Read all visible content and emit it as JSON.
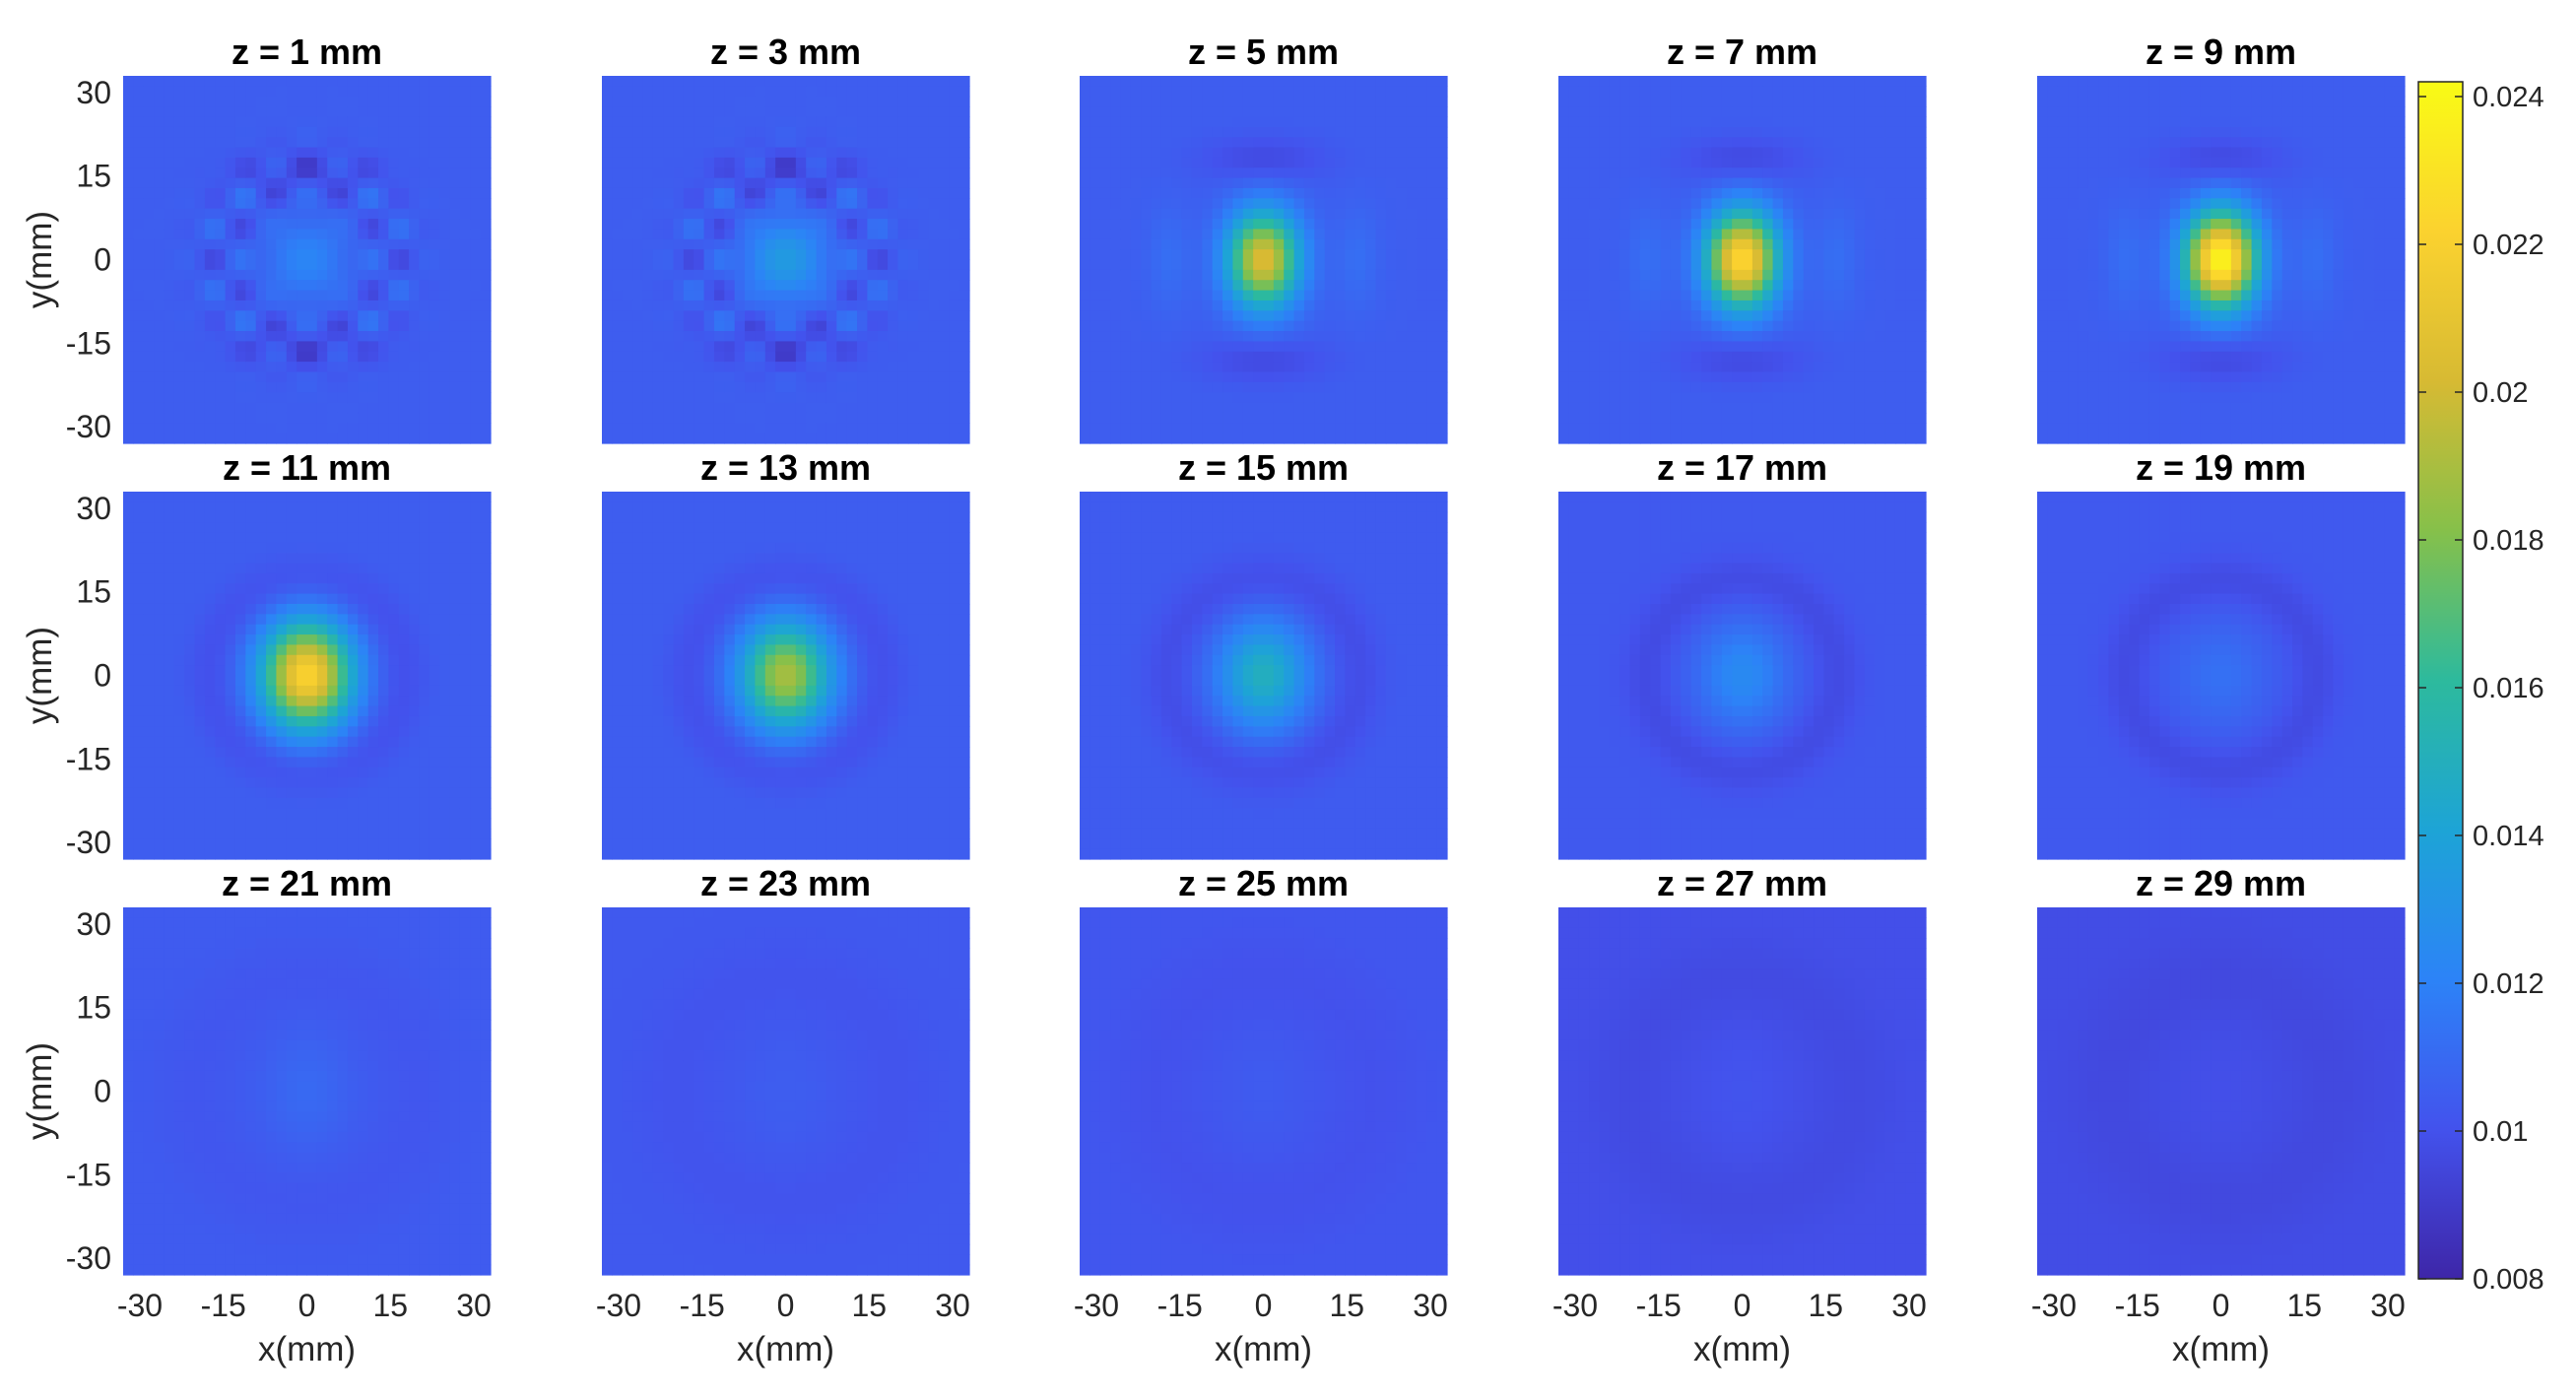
{
  "chart_data": {
    "type": "heatmap",
    "colormap": "parula",
    "colormap_stops": [
      "#3e26a8",
      "#4352ed",
      "#2c83f7",
      "#1da4d6",
      "#2dba9d",
      "#86c04a",
      "#d7ba33",
      "#fbd22f",
      "#f9fb15"
    ],
    "xlabel": "x(mm)",
    "ylabel": "y(mm)",
    "xlim": [
      -33,
      33
    ],
    "ylim": [
      -33,
      33
    ],
    "xticks": [
      -30,
      -15,
      0,
      15,
      30
    ],
    "yticks": [
      30,
      15,
      0,
      -15,
      -30
    ],
    "x_tick_labels": [
      "-30",
      "-15",
      "0",
      "15",
      "30"
    ],
    "y_tick_labels": [
      "30",
      "15",
      "0",
      "-15",
      "-30"
    ],
    "colorbar": {
      "range": [
        0.008,
        0.0242
      ],
      "ticks": [
        0.024,
        0.022,
        0.02,
        0.018,
        0.016,
        0.014,
        0.012,
        0.01,
        0.008
      ],
      "tick_labels": [
        "0.024",
        "0.022",
        "0.02",
        "0.018",
        "0.016",
        "0.014",
        "0.012",
        "0.01",
        "0.008"
      ]
    },
    "panels": [
      {
        "title": "z = 1 mm",
        "z_mm": 1,
        "background": 0.0105,
        "peak": 0.0122,
        "pattern": "checker"
      },
      {
        "title": "z = 3 mm",
        "z_mm": 3,
        "background": 0.0105,
        "peak": 0.0135,
        "pattern": "checker"
      },
      {
        "title": "z = 5 mm",
        "z_mm": 5,
        "background": 0.0105,
        "peak": 0.0205,
        "pattern": "lobes"
      },
      {
        "title": "z = 7 mm",
        "z_mm": 7,
        "background": 0.0105,
        "peak": 0.0225,
        "pattern": "lobes"
      },
      {
        "title": "z = 9 mm",
        "z_mm": 9,
        "background": 0.0105,
        "peak": 0.024,
        "pattern": "lobes"
      },
      {
        "title": "z = 11 mm",
        "z_mm": 11,
        "background": 0.0105,
        "peak": 0.0222,
        "pattern": "ring"
      },
      {
        "title": "z = 13 mm",
        "z_mm": 13,
        "background": 0.0105,
        "peak": 0.019,
        "pattern": "ring"
      },
      {
        "title": "z = 15 mm",
        "z_mm": 15,
        "background": 0.0104,
        "peak": 0.015,
        "pattern": "ring"
      },
      {
        "title": "z = 17 mm",
        "z_mm": 17,
        "background": 0.0103,
        "peak": 0.0125,
        "pattern": "ring"
      },
      {
        "title": "z = 19 mm",
        "z_mm": 19,
        "background": 0.0103,
        "peak": 0.0113,
        "pattern": "ring"
      },
      {
        "title": "z = 21 mm",
        "z_mm": 21,
        "background": 0.0104,
        "peak": 0.011,
        "pattern": "faint"
      },
      {
        "title": "z = 23 mm",
        "z_mm": 23,
        "background": 0.0103,
        "peak": 0.0105,
        "pattern": "faint"
      },
      {
        "title": "z = 25 mm",
        "z_mm": 25,
        "background": 0.0102,
        "peak": 0.0104,
        "pattern": "faint"
      },
      {
        "title": "z = 27 mm",
        "z_mm": 27,
        "background": 0.0099,
        "peak": 0.0101,
        "pattern": "faint"
      },
      {
        "title": "z = 29 mm",
        "z_mm": 29,
        "background": 0.0098,
        "peak": 0.0099,
        "pattern": "faint"
      }
    ]
  }
}
